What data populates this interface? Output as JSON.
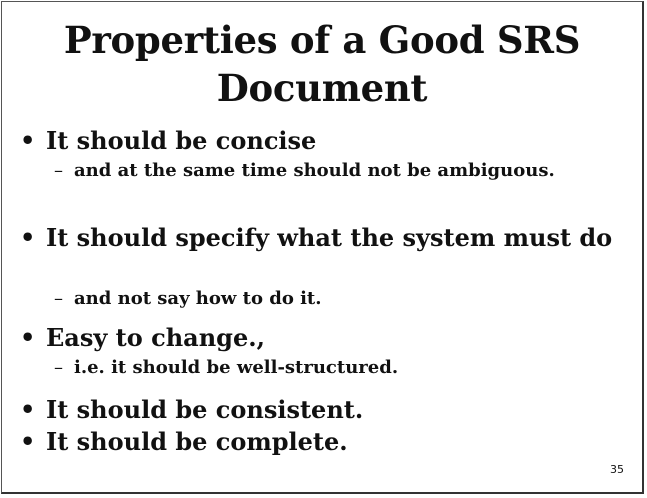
{
  "slide": {
    "title_line1": "Properties of a Good SRS",
    "title_line2": "Document",
    "bullets": [
      {
        "text": "It should be concise",
        "sub": "and at the same time should not be ambiguous."
      },
      {
        "text": "It should specify what the system must do",
        "sub": "and not say how to do it."
      },
      {
        "text": "Easy to change.,",
        "sub": "i.e. it should be well-structured."
      },
      {
        "text": "It should be consistent."
      },
      {
        "text": "It should be complete."
      }
    ],
    "bullet_symbol": "•",
    "sub_symbol": "–",
    "page_number": "35"
  }
}
